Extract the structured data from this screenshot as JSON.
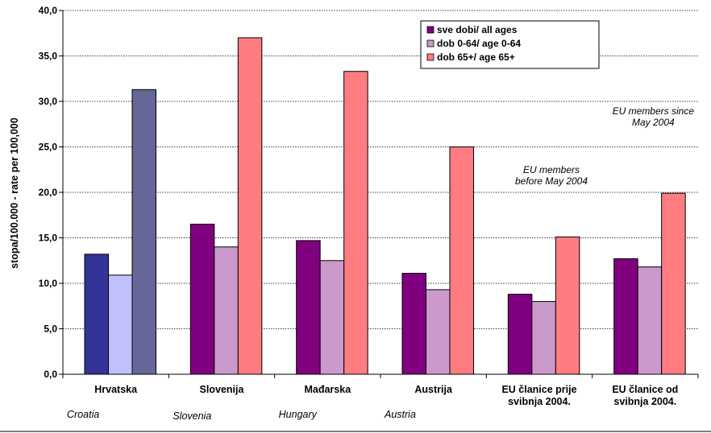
{
  "chart_data": {
    "type": "bar",
    "ylabel": "stopa/100.000 - rate per 100,000",
    "ylim": [
      0,
      40
    ],
    "ytick_step": 5,
    "y_ticks": [
      "0,0",
      "5,0",
      "10,0",
      "15,0",
      "20,0",
      "25,0",
      "30,0",
      "35,0",
      "40,0"
    ],
    "grid": true,
    "legend_position": "top-right",
    "categories": [
      {
        "label": [
          "Hrvatska"
        ],
        "english": "Croatia"
      },
      {
        "label": [
          "Slovenija"
        ],
        "english": "Slovenia"
      },
      {
        "label": [
          "Mađarska"
        ],
        "english": "Hungary"
      },
      {
        "label": [
          "Austrija"
        ],
        "english": "Austria"
      },
      {
        "label": [
          "EU članice prije",
          "svibnja 2004."
        ],
        "english": ""
      },
      {
        "label": [
          "EU članice od",
          "svibnja 2004."
        ],
        "english": ""
      }
    ],
    "series": [
      {
        "name": "sve dobi/ all ages",
        "color": "#800080",
        "highlight_color": "#333399",
        "values": [
          13.2,
          16.5,
          14.7,
          11.1,
          8.8,
          12.7
        ]
      },
      {
        "name": "dob 0-64/ age 0-64",
        "color": "#CC99CC",
        "highlight_color": "#C0C0FF",
        "values": [
          10.9,
          14.0,
          12.5,
          9.3,
          8.0,
          11.8
        ]
      },
      {
        "name": "dob 65+/ age 65+",
        "color": "#FF7C80",
        "highlight_color": "#666699",
        "values": [
          31.3,
          37.0,
          33.3,
          25.0,
          15.1,
          19.9
        ]
      }
    ],
    "highlight_category_index": 0,
    "annotations": [
      {
        "lines": [
          "EU members since",
          "May 2004"
        ],
        "category_index": 5
      },
      {
        "lines": [
          "EU members",
          "before May 2004"
        ],
        "category_index": 4
      }
    ]
  }
}
